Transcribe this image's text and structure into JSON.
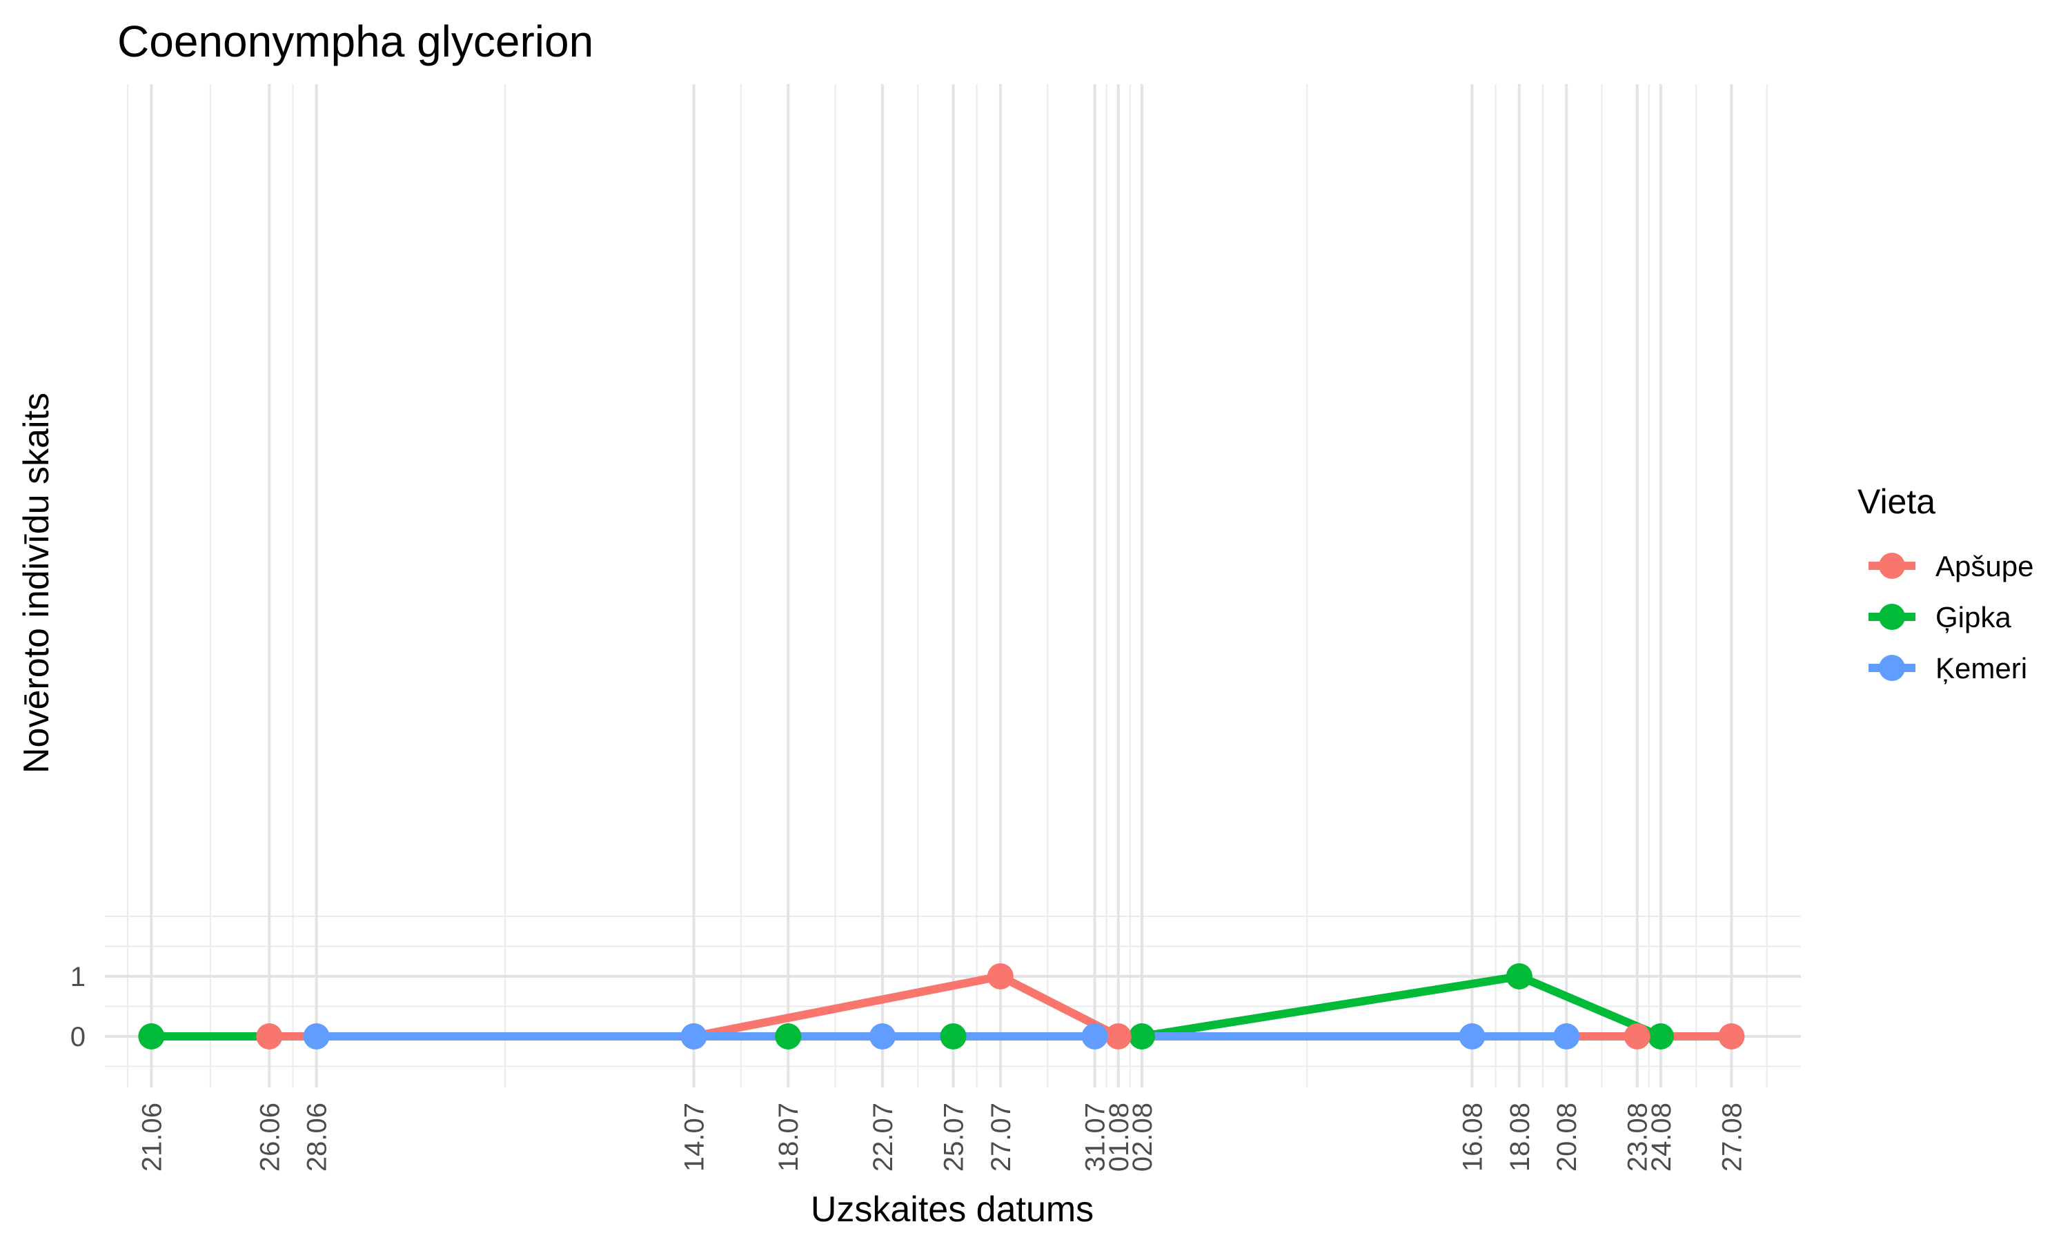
{
  "chart_data": {
    "type": "line",
    "title": "Coenonympha glycerion",
    "xlabel": "Uzskaites datums",
    "ylabel": "Novēroto indivīdu skaits",
    "x_tick_labels": [
      "21.06",
      "26.06",
      "28.06",
      "14.07",
      "18.07",
      "22.07",
      "25.07",
      "27.07",
      "31.07",
      "01.08",
      "02.08",
      "16.08",
      "18.08",
      "20.08",
      "23.08",
      "24.08",
      "27.08"
    ],
    "y_ticks": [
      0,
      1
    ],
    "ylim": [
      -0.75,
      2.0
    ],
    "grid": true,
    "legend": {
      "title": "Vieta",
      "position": "right"
    },
    "series": [
      {
        "name": "Apšupe",
        "color": "#F8766D",
        "points": [
          {
            "x": "26.06",
            "y": 0
          },
          {
            "x": "14.07",
            "y": 0
          },
          {
            "x": "27.07",
            "y": 1
          },
          {
            "x": "01.08",
            "y": 0
          },
          {
            "x": "23.08",
            "y": 0
          },
          {
            "x": "27.08",
            "y": 0
          }
        ]
      },
      {
        "name": "Ģipka",
        "color": "#00BA38",
        "points": [
          {
            "x": "21.06",
            "y": 0
          },
          {
            "x": "18.07",
            "y": 0
          },
          {
            "x": "25.07",
            "y": 0
          },
          {
            "x": "02.08",
            "y": 0
          },
          {
            "x": "18.08",
            "y": 1
          },
          {
            "x": "24.08",
            "y": 0
          }
        ]
      },
      {
        "name": "Ķemeri",
        "color": "#619CFF",
        "points": [
          {
            "x": "28.06",
            "y": 0
          },
          {
            "x": "14.07",
            "y": 0
          },
          {
            "x": "22.07",
            "y": 0
          },
          {
            "x": "31.07",
            "y": 0
          },
          {
            "x": "16.08",
            "y": 0
          },
          {
            "x": "20.08",
            "y": 0
          }
        ]
      }
    ]
  }
}
